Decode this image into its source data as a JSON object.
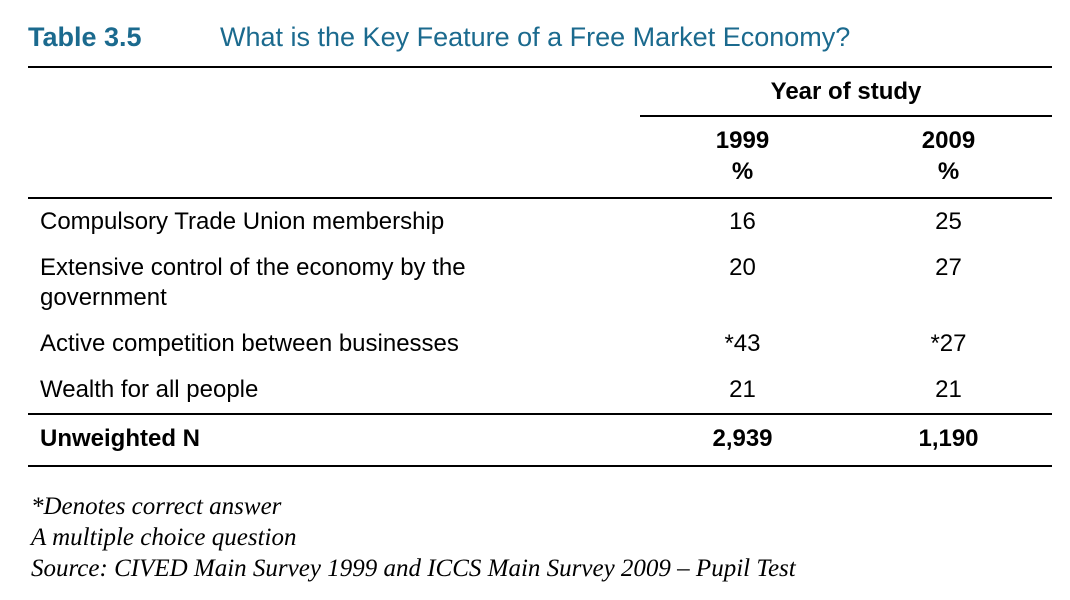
{
  "title": {
    "label": "Table 3.5",
    "question": "What is the Key Feature of a Free Market Economy?"
  },
  "table": {
    "spanner": "Year of study",
    "columns": [
      {
        "year": "1999",
        "unit": "%"
      },
      {
        "year": "2009",
        "unit": "%"
      }
    ],
    "rows": [
      {
        "label": "Compulsory Trade Union membership",
        "values": [
          "16",
          "25"
        ]
      },
      {
        "label": "Extensive control of the economy by the government",
        "values": [
          "20",
          "27"
        ]
      },
      {
        "label": "Active competition between businesses",
        "values": [
          "*43",
          "*27"
        ]
      },
      {
        "label": "Wealth for all people",
        "values": [
          "21",
          "21"
        ]
      }
    ],
    "footer_row": {
      "label": "Unweighted N",
      "values": [
        "2,939",
        "1,190"
      ]
    }
  },
  "notes": [
    "*Denotes correct answer",
    "A multiple choice question",
    "Source: CIVED Main Survey 1999 and ICCS Main Survey 2009 – Pupil Test"
  ],
  "colors": {
    "title_accent": "#1b6a8e",
    "text": "#000000",
    "rule": "#000000",
    "background": "#ffffff"
  }
}
